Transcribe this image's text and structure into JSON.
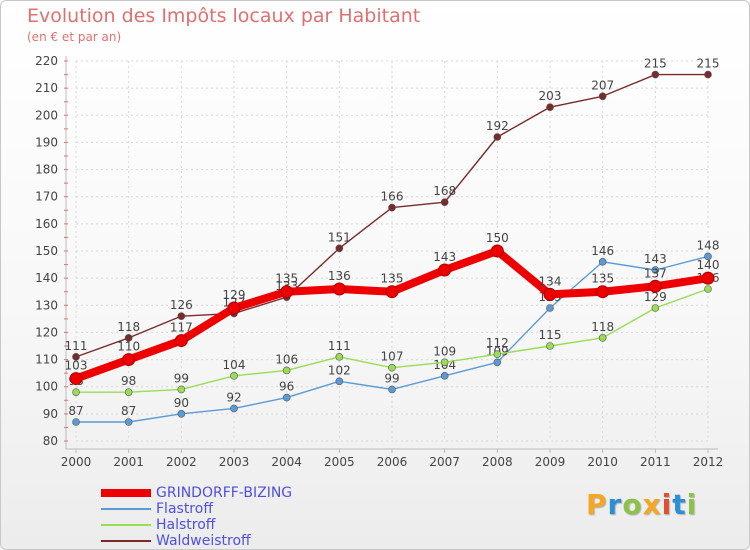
{
  "chart_data": {
    "type": "line",
    "title": "Evolution des Impôts locaux par Habitant",
    "subtitle": "(en € et par an)",
    "xlabel": "",
    "ylabel": "",
    "x": [
      "2000",
      "2001",
      "2002",
      "2003",
      "2004",
      "2005",
      "2006",
      "2007",
      "2008",
      "2009",
      "2010",
      "2011",
      "2012"
    ],
    "ylim": [
      80,
      220
    ],
    "yticks": [
      80,
      90,
      100,
      110,
      120,
      130,
      140,
      150,
      160,
      170,
      180,
      190,
      200,
      210,
      220
    ],
    "grid": true,
    "legend_position": "bottom-left",
    "series": [
      {
        "name": "GRINDORFF-BIZING",
        "color": "#ee0000",
        "values": [
          103,
          110,
          117,
          129,
          135,
          136,
          135,
          143,
          150,
          134,
          135,
          137,
          140
        ]
      },
      {
        "name": "Flastroff",
        "color": "#5b9bd5",
        "values": [
          87,
          87,
          90,
          92,
          96,
          102,
          99,
          104,
          109,
          129,
          146,
          143,
          148
        ]
      },
      {
        "name": "Halstroff",
        "color": "#99dd55",
        "values": [
          98,
          98,
          99,
          104,
          106,
          111,
          107,
          109,
          112,
          115,
          118,
          129,
          136
        ]
      },
      {
        "name": "Waldweistroff",
        "color": "#7a2a2a",
        "values": [
          111,
          118,
          126,
          127,
          133,
          151,
          166,
          168,
          192,
          203,
          207,
          215,
          215
        ]
      }
    ]
  },
  "logo": {
    "letters": [
      "P",
      "r",
      "o",
      "x",
      "i",
      "t",
      "i"
    ],
    "colors": [
      "#f5a623",
      "#2a8fd8",
      "#8bc34a",
      "#f5a623",
      "#e05030",
      "#2a8fd8",
      "#8bc34a"
    ]
  }
}
